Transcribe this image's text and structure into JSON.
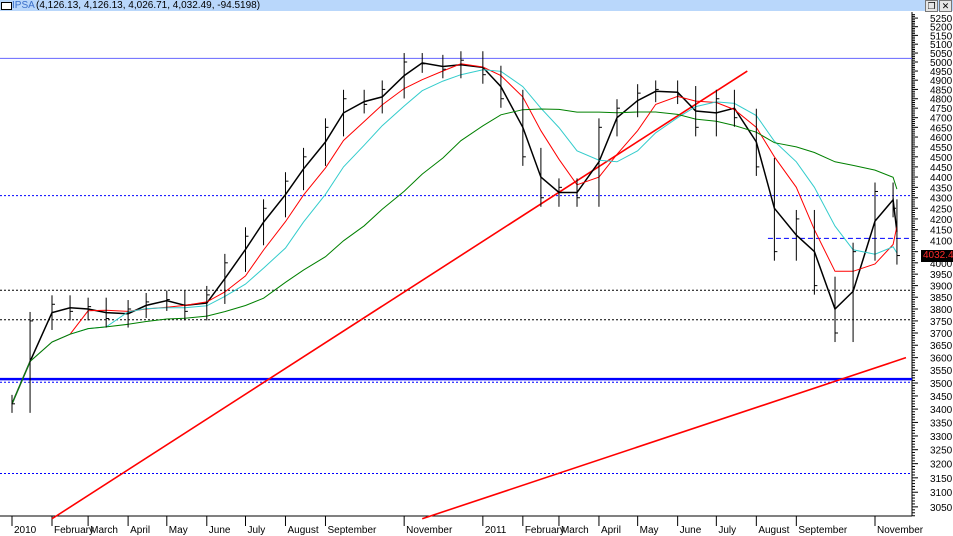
{
  "window": {
    "symbol": "IPSA",
    "values": "(4,126.13, 4,126.13, 4,026.71, 4,032.49, -94.5198)",
    "restore_icon": "restore-icon",
    "close_icon": "close-icon"
  },
  "last_price_label": "4032.49",
  "chart_data": {
    "type": "line",
    "title": "",
    "yscale": "log",
    "ylim": [
      3000,
      5300
    ],
    "y_ticks": [
      5250,
      5200,
      5150,
      5100,
      5050,
      5000,
      4950,
      4900,
      4850,
      4800,
      4750,
      4700,
      4650,
      4600,
      4550,
      4500,
      4450,
      4400,
      4350,
      4300,
      4250,
      4200,
      4150,
      4100,
      4000,
      3950,
      3900,
      3850,
      3800,
      3750,
      3700,
      3650,
      3600,
      3550,
      3500,
      3450,
      3400,
      3350,
      3300,
      3250,
      3200,
      3150,
      3100,
      3050
    ],
    "x_tick_labels": [
      {
        "label": "2010",
        "date": "2010-01-01"
      },
      {
        "label": "February",
        "date": "2010-02-01"
      },
      {
        "label": "March",
        "date": "2010-03-01"
      },
      {
        "label": "April",
        "date": "2010-04-01"
      },
      {
        "label": "May",
        "date": "2010-05-01"
      },
      {
        "label": "June",
        "date": "2010-06-01"
      },
      {
        "label": "July",
        "date": "2010-07-01"
      },
      {
        "label": "August",
        "date": "2010-08-01"
      },
      {
        "label": "September",
        "date": "2010-09-01"
      },
      {
        "label": "November",
        "date": "2010-11-01"
      },
      {
        "label": "2011",
        "date": "2011-01-01"
      },
      {
        "label": "February",
        "date": "2011-02-01"
      },
      {
        "label": "March",
        "date": "2011-03-01"
      },
      {
        "label": "April",
        "date": "2011-04-01"
      },
      {
        "label": "May",
        "date": "2011-05-01"
      },
      {
        "label": "June",
        "date": "2011-06-01"
      },
      {
        "label": "July",
        "date": "2011-07-01"
      },
      {
        "label": "August",
        "date": "2011-08-01"
      },
      {
        "label": "September",
        "date": "2011-09-01"
      },
      {
        "label": "November",
        "date": "2011-11-01"
      }
    ],
    "price_series": {
      "dates": [
        "2010-01-01",
        "2010-01-15",
        "2010-02-01",
        "2010-02-15",
        "2010-03-01",
        "2010-03-15",
        "2010-04-01",
        "2010-04-15",
        "2010-05-01",
        "2010-05-15",
        "2010-06-01",
        "2010-06-15",
        "2010-07-01",
        "2010-07-15",
        "2010-08-01",
        "2010-08-15",
        "2010-09-01",
        "2010-09-15",
        "2010-10-01",
        "2010-10-15",
        "2010-11-01",
        "2010-11-15",
        "2010-12-01",
        "2010-12-15",
        "2011-01-01",
        "2011-01-15",
        "2011-02-01",
        "2011-02-15",
        "2011-03-01",
        "2011-03-15",
        "2011-04-01",
        "2011-04-15",
        "2011-05-01",
        "2011-05-15",
        "2011-06-01",
        "2011-06-15",
        "2011-07-01",
        "2011-07-15",
        "2011-08-01",
        "2011-08-15",
        "2011-09-01",
        "2011-09-15",
        "2011-10-01",
        "2011-10-15",
        "2011-11-01",
        "2011-11-15",
        "2011-11-18"
      ],
      "close": [
        3420,
        3750,
        3820,
        3790,
        3810,
        3760,
        3800,
        3830,
        3840,
        3790,
        3860,
        4000,
        4120,
        4250,
        4380,
        4500,
        4650,
        4800,
        4770,
        4850,
        5000,
        4990,
        4960,
        5010,
        4930,
        4800,
        4500,
        4300,
        4350,
        4300,
        4650,
        4750,
        4830,
        4850,
        4820,
        4650,
        4800,
        4700,
        4450,
        4050,
        4200,
        3900,
        3700,
        4050,
        4330,
        4250,
        4032.49
      ]
    },
    "moving_averages": [
      {
        "color": "#000000",
        "window": 2
      },
      {
        "color": "#ff0000",
        "window": 4
      },
      {
        "color": "#33cccc",
        "window": 6
      },
      {
        "color": "#008000",
        "window": 14
      }
    ],
    "horizontal_lines": [
      {
        "value": 5020,
        "color": "#6666ff",
        "style": "solid"
      },
      {
        "value": 4310,
        "color": "#0000ff",
        "style": "dotted"
      },
      {
        "value": 4110,
        "color": "#0000ff",
        "style": "dashed",
        "from": "2011-08-10"
      },
      {
        "value": 3880,
        "color": "#000000",
        "style": "dotted"
      },
      {
        "value": 3755,
        "color": "#000000",
        "style": "dotted"
      },
      {
        "value": 3515,
        "color": "#0000ff",
        "style": "solid-thick"
      },
      {
        "value": 3503,
        "color": "#0000ff",
        "style": "dotted"
      },
      {
        "value": 3165,
        "color": "#0000ff",
        "style": "dotted"
      }
    ],
    "trend_lines": [
      {
        "color": "#ff0000",
        "from": {
          "date": "2010-02-01",
          "value": 3010
        },
        "to": {
          "date": "2011-07-25",
          "value": 4950
        }
      },
      {
        "color": "#ff0000",
        "from": {
          "date": "2010-11-15",
          "value": 3010
        },
        "to": {
          "date": "2011-11-25",
          "value": 3600
        }
      }
    ]
  }
}
